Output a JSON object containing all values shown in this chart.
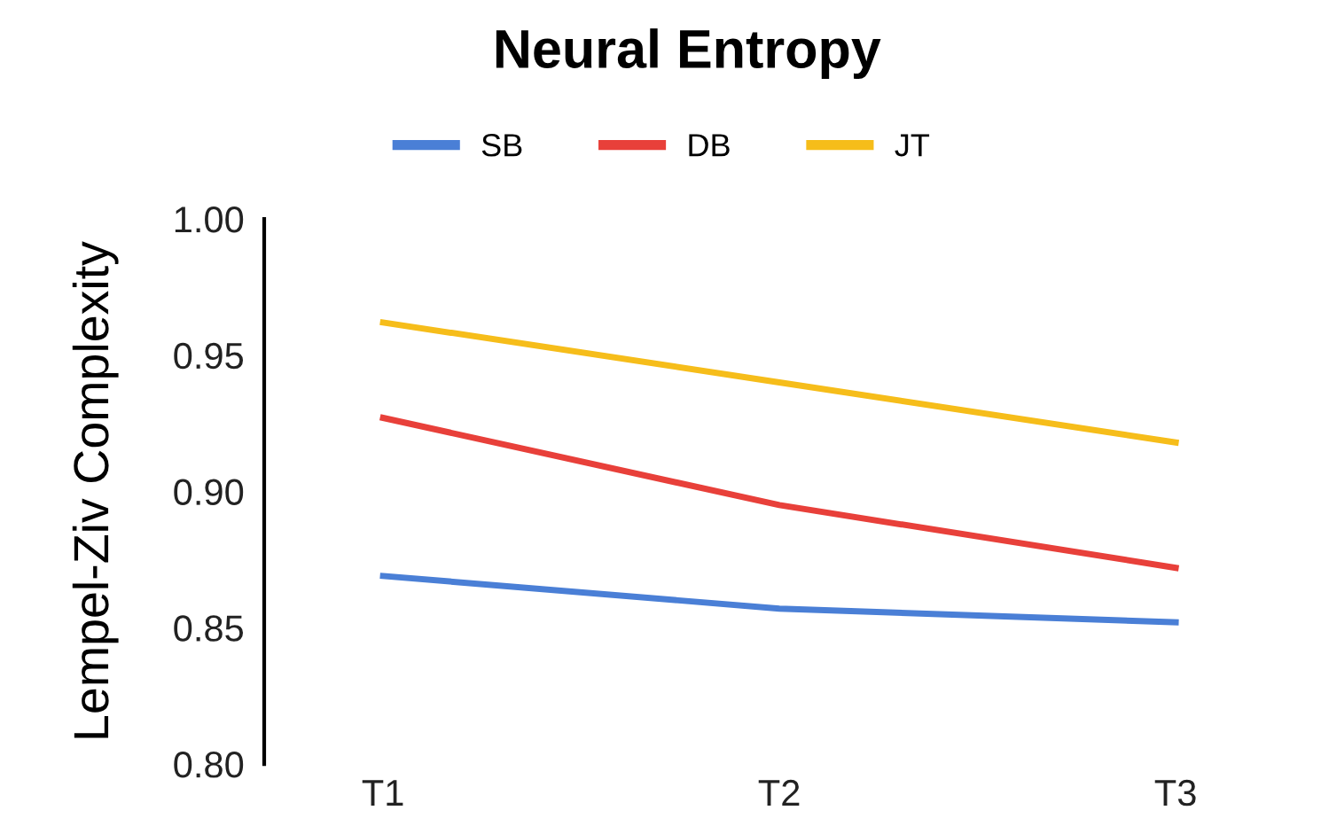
{
  "chart_data": {
    "type": "line",
    "title": "Neural Entropy",
    "ylabel": "Lempel-Ziv Complexity",
    "categories": [
      "T1",
      "T2",
      "T3"
    ],
    "series": [
      {
        "name": "SB",
        "color": "#4a7fd6",
        "values": [
          0.869,
          0.857,
          0.852
        ]
      },
      {
        "name": "DB",
        "color": "#e8403a",
        "values": [
          0.927,
          0.895,
          0.872
        ]
      },
      {
        "name": "JT",
        "color": "#f6bd1a",
        "values": [
          0.962,
          0.94,
          0.918
        ]
      }
    ],
    "ylim": [
      0.8,
      1.0
    ],
    "yticks": [
      {
        "value": 0.8,
        "label": "0.80"
      },
      {
        "value": 0.85,
        "label": "0.85"
      },
      {
        "value": 0.9,
        "label": "0.90"
      },
      {
        "value": 0.95,
        "label": "0.95"
      },
      {
        "value": 1.0,
        "label": "1.00"
      }
    ],
    "grid": false,
    "legend": "top",
    "marker": "none",
    "line_style": "solid"
  }
}
